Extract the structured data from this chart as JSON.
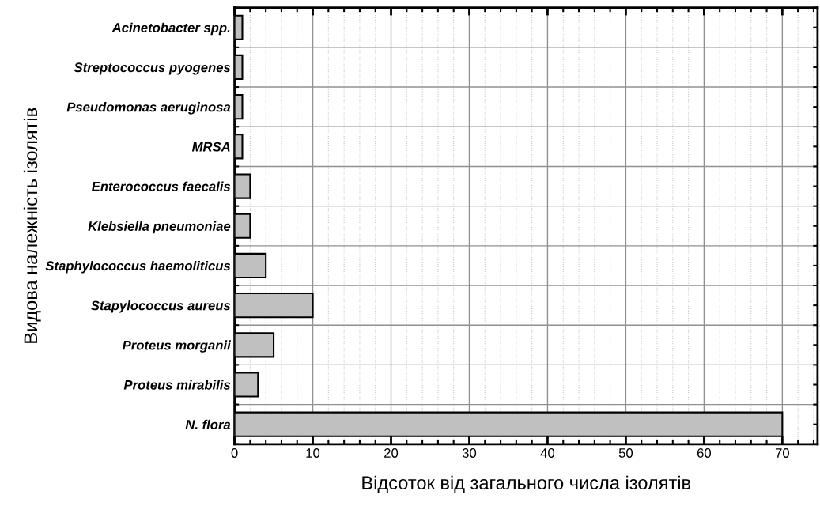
{
  "chart_data": {
    "type": "bar",
    "orientation": "horizontal",
    "xlabel": "Відсоток від загального числа ізолятів",
    "ylabel": "Видова належність ізолятів",
    "categories": [
      "Acinetobacter spp.",
      "Streptococcus pyogenes",
      "Pseudomonas aeruginosa",
      "MRSA",
      "Enterococcus faecalis",
      "Klebsiella pneumoniae",
      "Staphylococcus haemoliticus",
      "Stapylococcus aureus",
      "Proteus morganii",
      "Proteus mirabilis",
      "N. flora"
    ],
    "values": [
      1,
      1,
      1,
      1,
      2,
      2,
      4,
      10,
      5,
      3,
      70
    ],
    "color": "#c0c0c0",
    "xlim": [
      0,
      74.5
    ],
    "xticks": [
      0,
      10,
      20,
      30,
      40,
      50,
      60,
      70
    ],
    "grid": true
  }
}
